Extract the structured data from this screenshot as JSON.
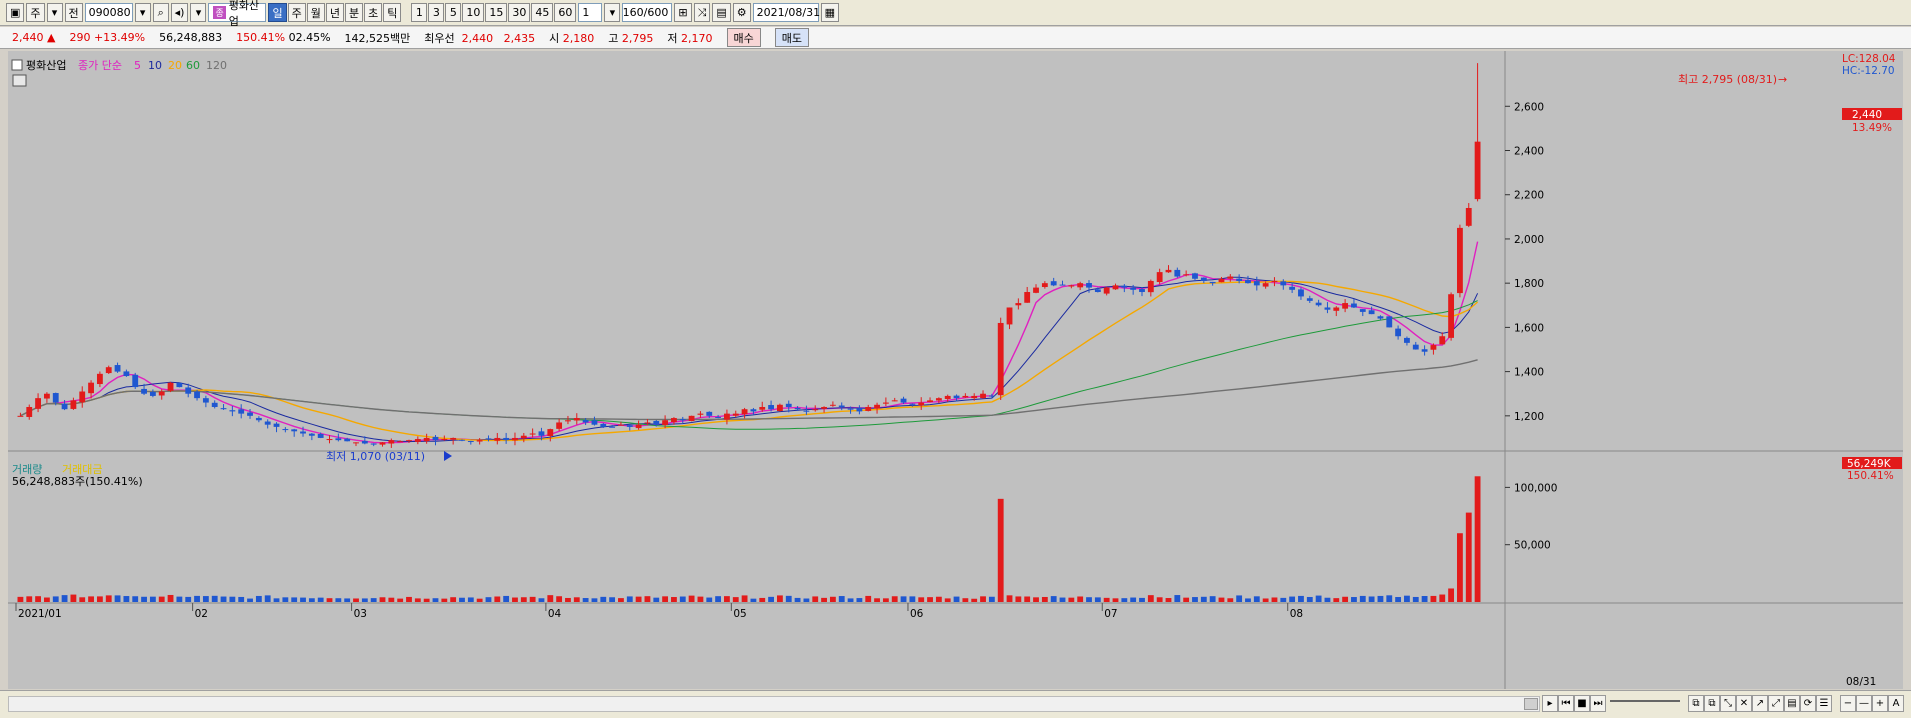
{
  "toolbar": {
    "mode": "주",
    "region": "전",
    "code": "090080",
    "stock_badge": "종",
    "stock_name": "평화산업",
    "periods": [
      "일",
      "주",
      "월",
      "년",
      "분",
      "초",
      "틱"
    ],
    "active_period": "일",
    "intervals": [
      "1",
      "3",
      "5",
      "10",
      "15",
      "30",
      "45",
      "60"
    ],
    "multiplier": "1",
    "count": "160",
    "count_total": "/600",
    "date": "2021/08/31"
  },
  "quote": {
    "price": "2,440",
    "arrow": "▲",
    "change": "290",
    "change_pct": "+13.49%",
    "volume": "56,248,883",
    "vol_ratio": "150.41%",
    "turnover": "02.45%",
    "amount": "142,525백만",
    "best_label": "최우선",
    "ask": "2,440",
    "bid": "2,435",
    "open_label": "시",
    "open": "2,180",
    "high_label": "고",
    "high": "2,795",
    "low_label": "저",
    "low": "2,170",
    "buy": "매수",
    "sell": "매도"
  },
  "legend": {
    "name": "평화산업",
    "ma_label": "종가 단순",
    "ma5": "5",
    "ma10": "10",
    "ma20": "20",
    "ma60": "60",
    "ma120": "120"
  },
  "vol_legend": {
    "volume": "거래량",
    "amount": "거래대금",
    "value": "56,248,883주(150.41%)"
  },
  "annotations": {
    "high": "최고 2,795 (08/31)",
    "low": "최저 1,070 (03/11)",
    "lc": "LC:128.04",
    "hc": "HC:-12.70",
    "price_tag": "2,440",
    "pct_tag": "13.49%",
    "vol_tag": "56,249K",
    "vol_pct_tag": "150.41%",
    "last_date": "08/31"
  },
  "colors": {
    "up": "#e21b1b",
    "down": "#1f57d0",
    "ma5": "#e020c0",
    "ma10": "#1a2aa0",
    "ma20": "#f5a800",
    "ma60": "#1d9a3a",
    "ma120": "#707070",
    "bg": "#c0c0c0"
  },
  "chart_data": {
    "type": "candlestick",
    "x_start": "2021/01",
    "months": [
      "2021/01",
      "02",
      "03",
      "04",
      "05",
      "06",
      "07",
      "08"
    ],
    "price_ticks": [
      1200,
      1400,
      1600,
      1800,
      2000,
      2200,
      2400,
      2600
    ],
    "volume_ticks": [
      50000,
      100000
    ],
    "price_range": [
      1050,
      2850
    ],
    "volume_range": [
      0,
      130000
    ],
    "high_point": {
      "date": "08/31",
      "value": 2795
    },
    "low_point": {
      "date": "03/11",
      "value": 1070
    },
    "last": {
      "date": "08/31",
      "open": 2180,
      "high": 2795,
      "low": 2170,
      "close": 2440,
      "volume_k": 56249
    },
    "monthly_closes": [
      {
        "month": "01",
        "values": [
          1200,
          1240,
          1280,
          1300,
          1260,
          1230,
          1270,
          1310,
          1350,
          1390,
          1420,
          1400,
          1380,
          1330,
          1300,
          1290,
          1310,
          1350,
          1330,
          1300
        ]
      },
      {
        "month": "02",
        "values": [
          1280,
          1260,
          1240,
          1230,
          1220,
          1210,
          1200,
          1180,
          1160,
          1150,
          1140,
          1130,
          1120,
          1110,
          1100,
          1095,
          1090,
          1085
        ]
      },
      {
        "month": "03",
        "values": [
          1080,
          1075,
          1070,
          1080,
          1090,
          1085,
          1090,
          1095,
          1100,
          1090,
          1095,
          1100,
          1090,
          1085,
          1090,
          1095,
          1100,
          1090,
          1100,
          1110,
          1120,
          1110
        ]
      },
      {
        "month": "04",
        "values": [
          1140,
          1170,
          1180,
          1190,
          1170,
          1160,
          1150,
          1150,
          1160,
          1150,
          1160,
          1170,
          1160,
          1180,
          1190,
          1180,
          1200,
          1210,
          1200,
          1190,
          1210
        ]
      },
      {
        "month": "05",
        "values": [
          1210,
          1230,
          1220,
          1240,
          1230,
          1250,
          1240,
          1230,
          1220,
          1230,
          1240,
          1250,
          1240,
          1230,
          1220,
          1240,
          1250,
          1260,
          1270,
          1260
        ]
      },
      {
        "month": "06",
        "values": [
          1250,
          1260,
          1270,
          1280,
          1290,
          1280,
          1290,
          1290,
          1300,
          1290,
          1620,
          1690,
          1710,
          1760,
          1780,
          1800,
          1790,
          1790,
          1790,
          1800,
          1780,
          1760
        ]
      },
      {
        "month": "07",
        "values": [
          1780,
          1790,
          1780,
          1770,
          1760,
          1810,
          1850,
          1860,
          1830,
          1840,
          1820,
          1810,
          1800,
          1820,
          1830,
          1810,
          1800,
          1790,
          1800,
          1810,
          1790
        ]
      },
      {
        "month": "08",
        "values": [
          1770,
          1740,
          1720,
          1700,
          1680,
          1690,
          1710,
          1690,
          1670,
          1660,
          1640,
          1600,
          1560,
          1530,
          1500,
          1490,
          1520,
          1560,
          1750,
          2050,
          2140,
          2440
        ]
      }
    ]
  }
}
